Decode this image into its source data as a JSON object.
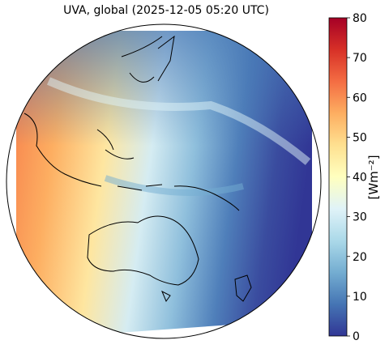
{
  "title": "UVA, global (2025-12-05 05:20 UTC)",
  "colorbar": {
    "label": "[Wm⁻²]",
    "lim": [
      0,
      80
    ],
    "ticks": [
      0,
      10,
      20,
      30,
      40,
      50,
      60,
      70,
      80
    ],
    "colors": [
      "#313695",
      "#4575b4",
      "#74add1",
      "#abd9e9",
      "#e0f3f8",
      "#ffffbf",
      "#fee090",
      "#fdae61",
      "#f46d43",
      "#d73027",
      "#a50026"
    ]
  }
}
